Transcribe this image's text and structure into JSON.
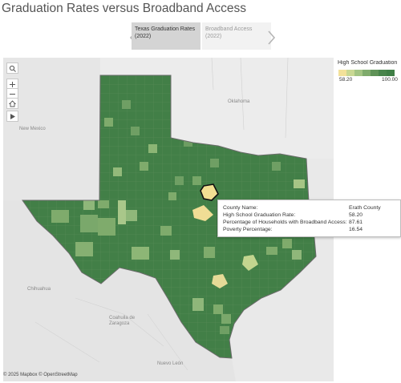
{
  "title": "Graduation Rates versus Broadband Access",
  "story": {
    "tabs": [
      {
        "label": "Texas Graduation Rates (2022)",
        "active": true
      },
      {
        "label": "Broadband Access (2022)",
        "active": false
      }
    ]
  },
  "map": {
    "labels": {
      "oklahoma": "Oklahoma",
      "new_mexico": "New Mexico",
      "chihuahua": "Chihuahua",
      "coahuila": "Coahuila de Zaragoza",
      "nuevo_leon": "Nuevo León"
    },
    "controls": [
      "search-icon",
      "zoom-in-icon",
      "zoom-out-icon",
      "home-icon",
      "pan-arrow-icon"
    ]
  },
  "legend": {
    "title": "High School Graduation Rate",
    "min": "58.20",
    "max": "100.00",
    "colors": {
      "low": "#f3e19a",
      "high": "#3f7e45"
    }
  },
  "tooltip": {
    "rows": [
      {
        "label": "County Name:",
        "value": "Erath County"
      },
      {
        "label": "High School Graduation Rate:",
        "value": "58.20"
      },
      {
        "label": "Percentage of Households with Broadband Access:",
        "value": "87.61"
      },
      {
        "label": "Poverty Percentage:",
        "value": "16.54"
      }
    ]
  },
  "attribution": "© 2025 Mapbox  © OpenStreetMap"
}
